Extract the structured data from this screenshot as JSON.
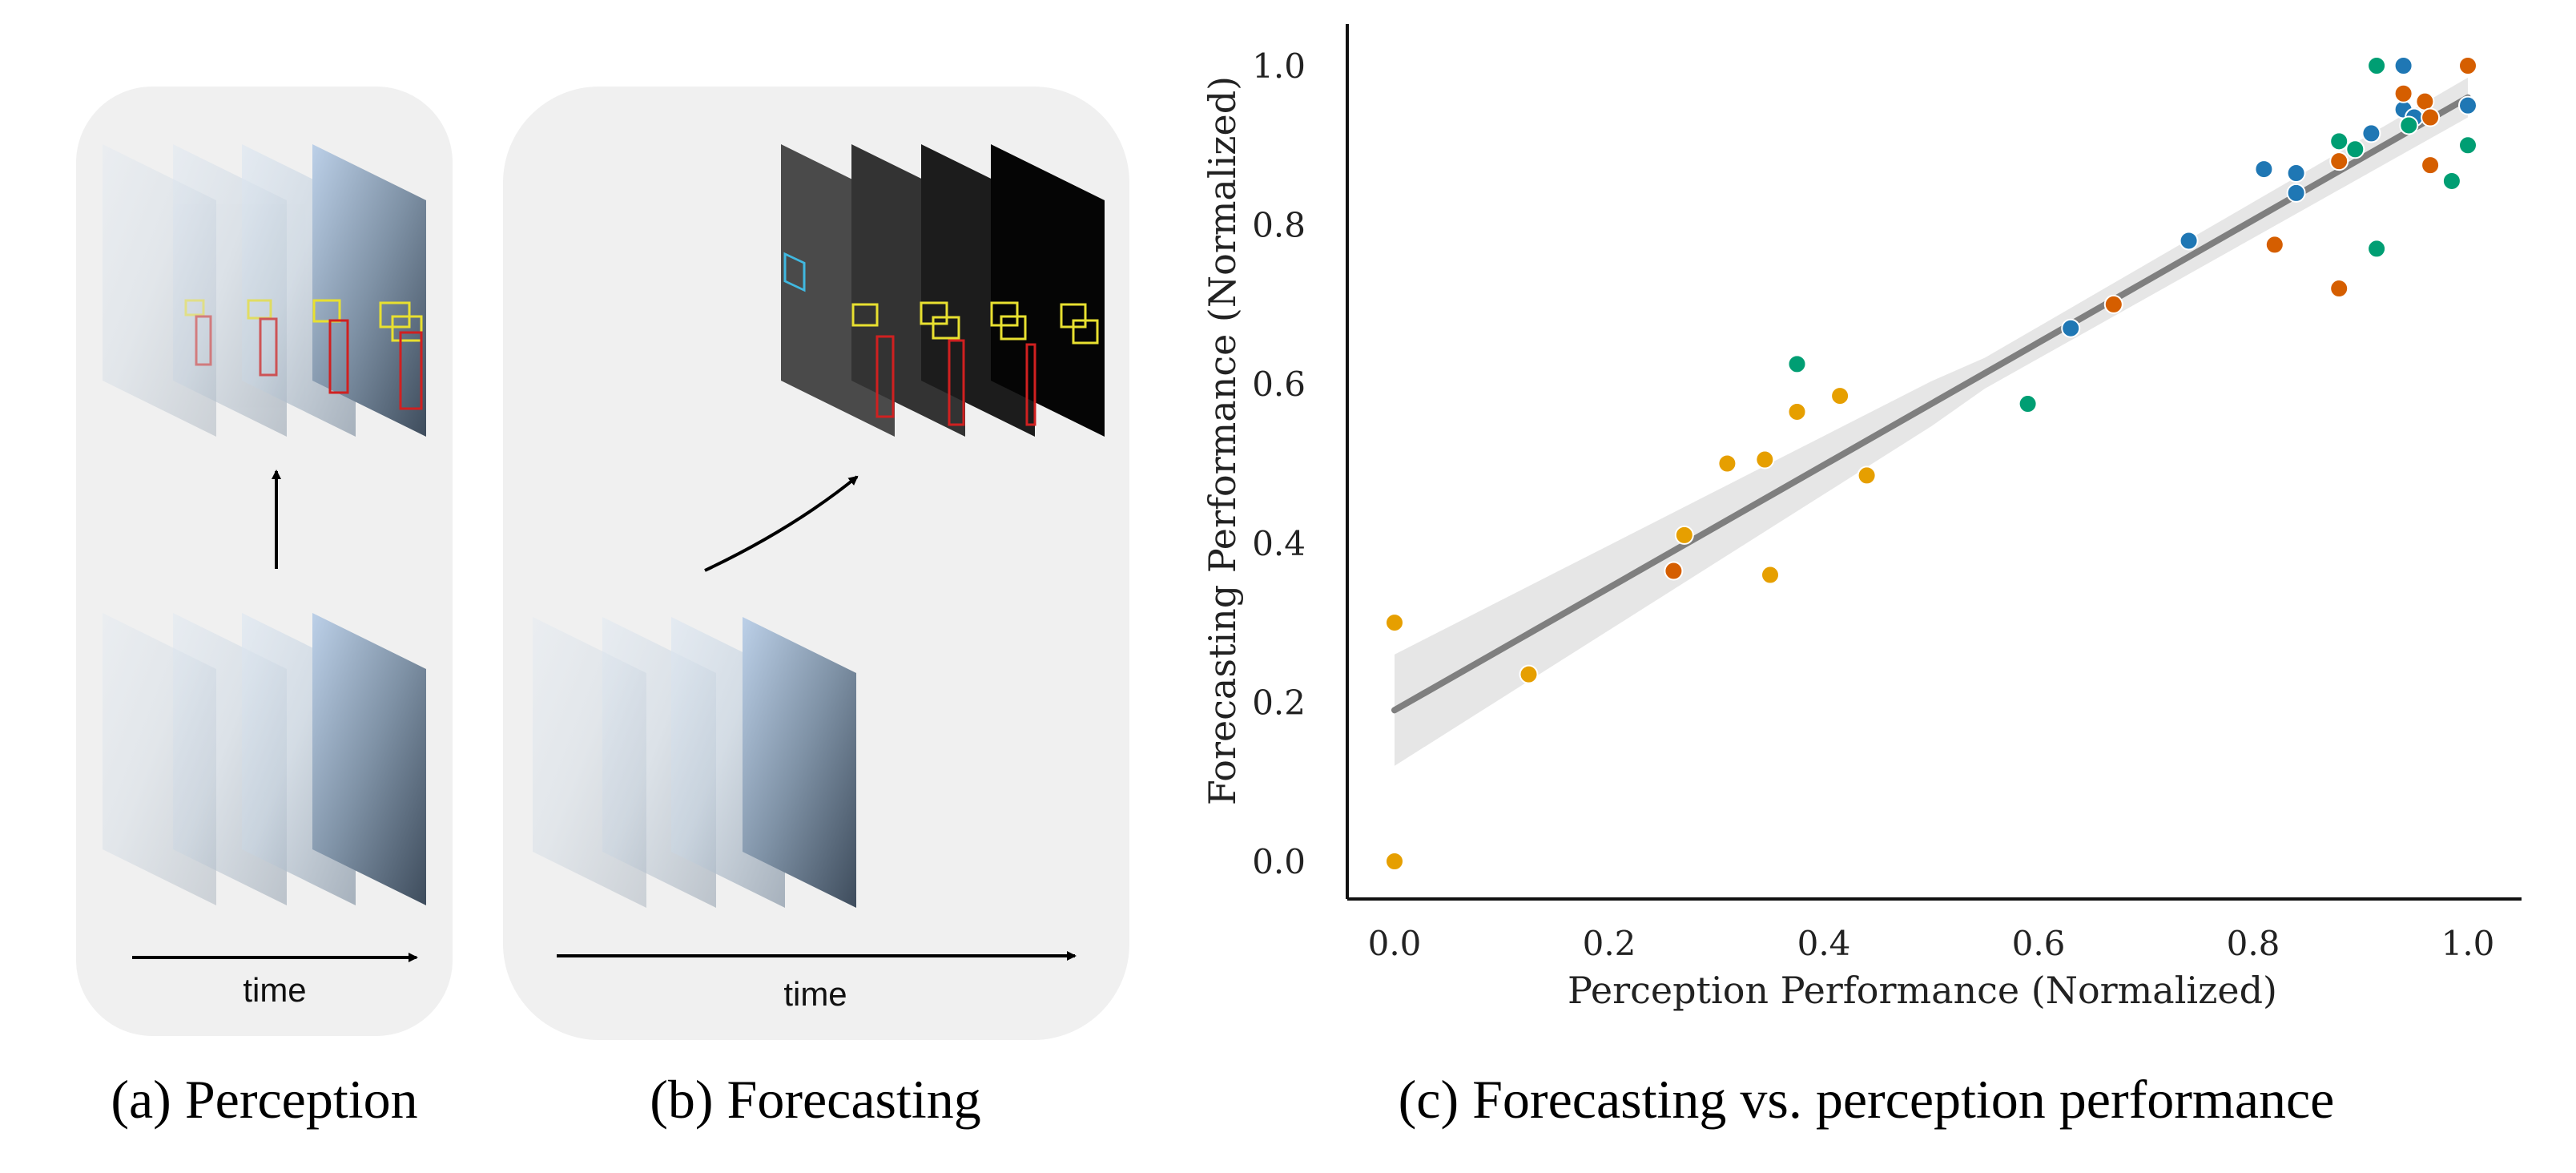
{
  "panels": {
    "perception": {
      "caption": "(a) Perception",
      "time_label": "time",
      "frames_input": [
        "frame-1",
        "frame-2",
        "frame-3",
        "frame-4"
      ],
      "frames_output": [
        "detections-1",
        "detections-2",
        "detections-3",
        "detections-4"
      ]
    },
    "forecasting": {
      "caption": "(b) Forecasting",
      "time_label": "time",
      "frames_input": [
        "frame-1",
        "frame-2",
        "frame-3",
        "frame-4"
      ],
      "frames_output": [
        "forecast-1",
        "forecast-2",
        "forecast-3",
        "forecast-4"
      ]
    },
    "scatter": {
      "caption": "(c) Forecasting vs. perception performance"
    }
  },
  "colors": {
    "panel_bg": "#f0f0f0",
    "series_blue": "#1f77b4",
    "series_orange": "#d55e00",
    "series_green": "#009e73",
    "series_yellow": "#e69f00",
    "fit_line": "#7f7f7f",
    "ci_band": "#e6e6e6",
    "box_yellow": "#e8e030",
    "box_red": "#d02020",
    "box_cyan": "#40b8e0"
  },
  "chart_data": {
    "type": "scatter",
    "title": "",
    "xlabel": "Perception Performance (Normalized)",
    "ylabel": "Forecasting Performance (Normalized)",
    "xlim": [
      -0.05,
      1.05
    ],
    "ylim": [
      -0.05,
      1.05
    ],
    "xticks": [
      "0.0",
      "0.2",
      "0.4",
      "0.6",
      "0.8",
      "1.0"
    ],
    "yticks": [
      "0.0",
      "0.2",
      "0.4",
      "0.6",
      "0.8",
      "1.0"
    ],
    "xtick_values": [
      0.0,
      0.2,
      0.4,
      0.6,
      0.8,
      1.0
    ],
    "ytick_values": [
      0.0,
      0.2,
      0.4,
      0.6,
      0.8,
      1.0
    ],
    "fit": {
      "intercept": 0.19,
      "slope": 0.77,
      "ci_half_width_start": 0.07,
      "ci_half_width_mid": 0.02,
      "ci_half_width_end": 0.025
    },
    "series": [
      {
        "name": "blue",
        "color": "#1f77b4",
        "points": [
          [
            0.63,
            0.67
          ],
          [
            0.74,
            0.78
          ],
          [
            0.81,
            0.87
          ],
          [
            0.84,
            0.865
          ],
          [
            0.84,
            0.84
          ],
          [
            0.91,
            0.915
          ],
          [
            0.94,
            1.0
          ],
          [
            0.94,
            0.945
          ],
          [
            0.95,
            0.935
          ],
          [
            1.0,
            0.95
          ]
        ]
      },
      {
        "name": "orange",
        "color": "#d55e00",
        "points": [
          [
            0.26,
            0.365
          ],
          [
            0.67,
            0.7
          ],
          [
            0.82,
            0.775
          ],
          [
            0.88,
            0.72
          ],
          [
            0.88,
            0.88
          ],
          [
            0.94,
            0.965
          ],
          [
            0.96,
            0.955
          ],
          [
            0.965,
            0.875
          ],
          [
            0.965,
            0.935
          ],
          [
            1.0,
            1.0
          ]
        ]
      },
      {
        "name": "green",
        "color": "#009e73",
        "points": [
          [
            0.375,
            0.625
          ],
          [
            0.59,
            0.575
          ],
          [
            0.88,
            0.905
          ],
          [
            0.895,
            0.895
          ],
          [
            0.915,
            1.0
          ],
          [
            0.915,
            0.77
          ],
          [
            0.945,
            0.925
          ],
          [
            0.985,
            0.855
          ],
          [
            1.0,
            0.9
          ]
        ]
      },
      {
        "name": "yellow",
        "color": "#e69f00",
        "points": [
          [
            0.0,
            0.3
          ],
          [
            0.0,
            0.0
          ],
          [
            0.125,
            0.235
          ],
          [
            0.27,
            0.41
          ],
          [
            0.31,
            0.5
          ],
          [
            0.345,
            0.505
          ],
          [
            0.35,
            0.36
          ],
          [
            0.375,
            0.565
          ],
          [
            0.415,
            0.585
          ],
          [
            0.44,
            0.485
          ]
        ]
      }
    ]
  }
}
